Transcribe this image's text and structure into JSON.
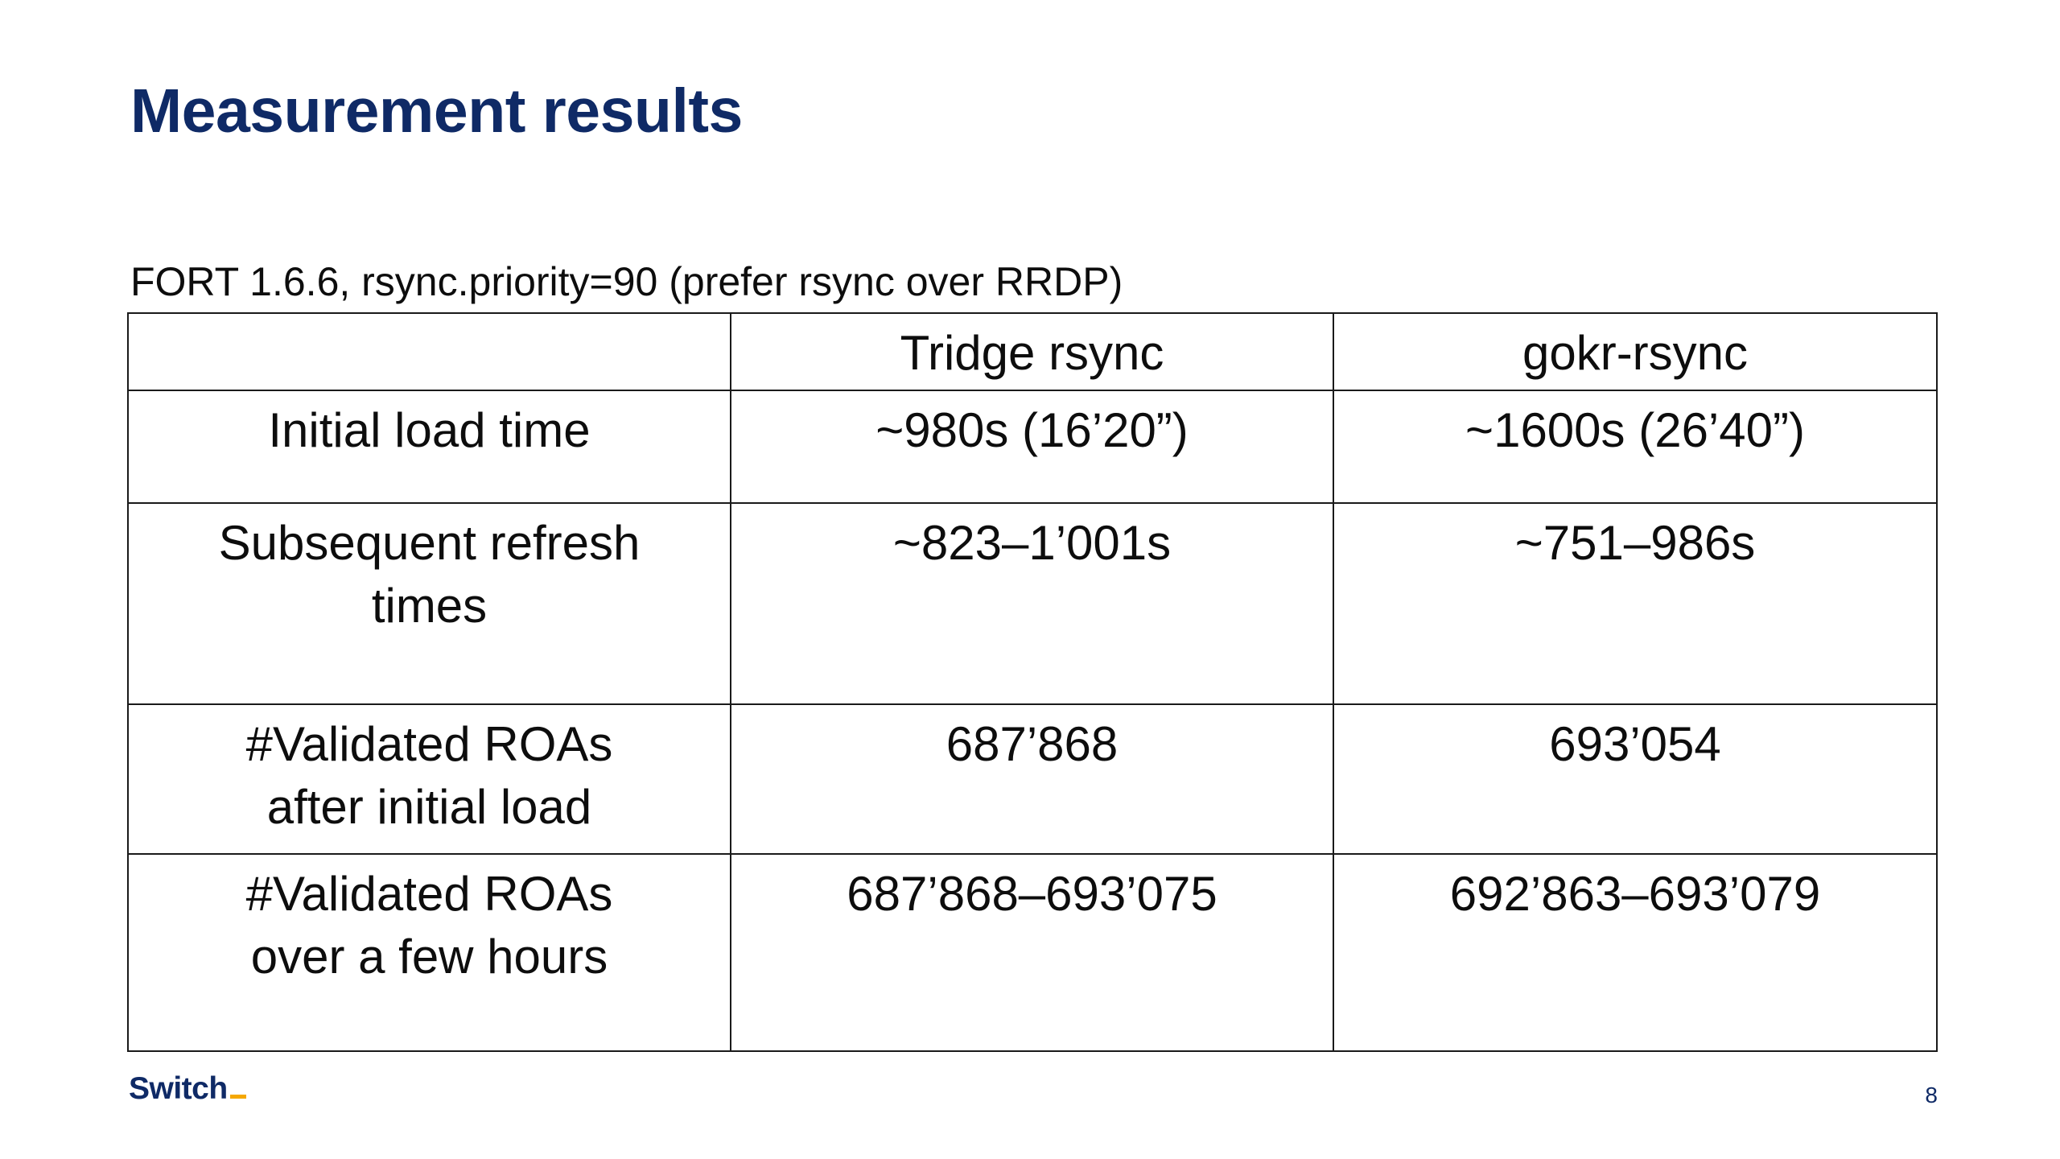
{
  "slide": {
    "title": "Measurement results",
    "subtitle": "FORT 1.6.6, rsync.priority=90 (prefer rsync over RRDP)",
    "page_number": "8"
  },
  "table": {
    "headers": [
      "",
      "Tridge rsync",
      "gokr-rsync"
    ],
    "rows": [
      {
        "label": "Initial load time",
        "tridge": "~980s (16’20”)",
        "gokr": "~1600s (26’40”)"
      },
      {
        "label": "Subsequent refresh times",
        "tridge": "~823–1’001s",
        "gokr": "~751–986s"
      },
      {
        "label": "#Validated ROAs after initial load",
        "tridge": "687’868",
        "gokr": "693’054"
      },
      {
        "label": "#Validated ROAs over a few hours",
        "tridge": "687’868–693’075",
        "gokr": "692’863–693’079"
      }
    ]
  },
  "footer": {
    "logo_text": "Switch"
  },
  "colors": {
    "title": "#0f2a66",
    "logo": "#0f2a66",
    "logo_accent": "#f5a800",
    "table_border": "#1a1a1a",
    "text": "#0d0d0d"
  }
}
